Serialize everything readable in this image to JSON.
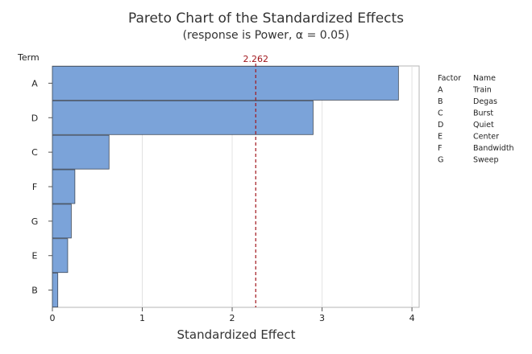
{
  "chart_data": {
    "type": "bar",
    "orientation": "horizontal",
    "title": "Pareto Chart of the Standardized Effects",
    "subtitle": "(response is Power, α = 0.05)",
    "xlabel": "Standardized Effect",
    "ylabel": "Term",
    "xlim": [
      0,
      4.08
    ],
    "xticks": [
      0,
      1,
      2,
      3,
      4
    ],
    "grid": true,
    "categories": [
      "A",
      "D",
      "C",
      "F",
      "G",
      "E",
      "B"
    ],
    "values": [
      3.85,
      2.9,
      0.63,
      0.25,
      0.21,
      0.17,
      0.06
    ],
    "reference_line": {
      "value": 2.262,
      "label": "2.262",
      "color": "#a0151b"
    },
    "bar_color": "#7ba3d9",
    "bar_edge_color": "#3f4a5a",
    "legend": {
      "placement": "right",
      "headers": [
        "Factor",
        "Name"
      ],
      "rows": [
        [
          "A",
          "Train"
        ],
        [
          "B",
          "Degas"
        ],
        [
          "C",
          "Burst"
        ],
        [
          "D",
          "Quiet"
        ],
        [
          "E",
          "Center"
        ],
        [
          "F",
          "Bandwidth"
        ],
        [
          "G",
          "Sweep"
        ]
      ]
    }
  }
}
